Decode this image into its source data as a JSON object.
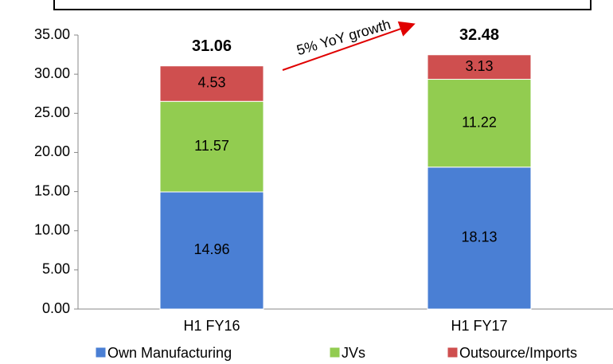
{
  "chart_data": {
    "type": "stacked_bar",
    "categories": [
      "H1 FY16",
      "H1 FY17"
    ],
    "series": [
      {
        "name": "Own Manufacturing",
        "color": "#4a7fd4",
        "values": [
          14.96,
          18.13
        ]
      },
      {
        "name": "JVs",
        "color": "#92cc50",
        "values": [
          11.57,
          11.22
        ]
      },
      {
        "name": "Outsource/Imports",
        "color": "#cf4f4f",
        "values": [
          4.53,
          3.13
        ]
      }
    ],
    "totals": [
      31.06,
      32.48
    ],
    "annotation": "5% YoY growth",
    "ylim": [
      0,
      35
    ],
    "yticks": [
      {
        "value": 0,
        "label": "0.00"
      },
      {
        "value": 5,
        "label": "5.00"
      },
      {
        "value": 10,
        "label": "10.00"
      },
      {
        "value": 15,
        "label": "15.00"
      },
      {
        "value": 20,
        "label": "20.00"
      },
      {
        "value": 25,
        "label": "25.00"
      },
      {
        "value": 30,
        "label": "30.00"
      },
      {
        "value": 35,
        "label": "35.00"
      }
    ],
    "legend": "bottom"
  }
}
